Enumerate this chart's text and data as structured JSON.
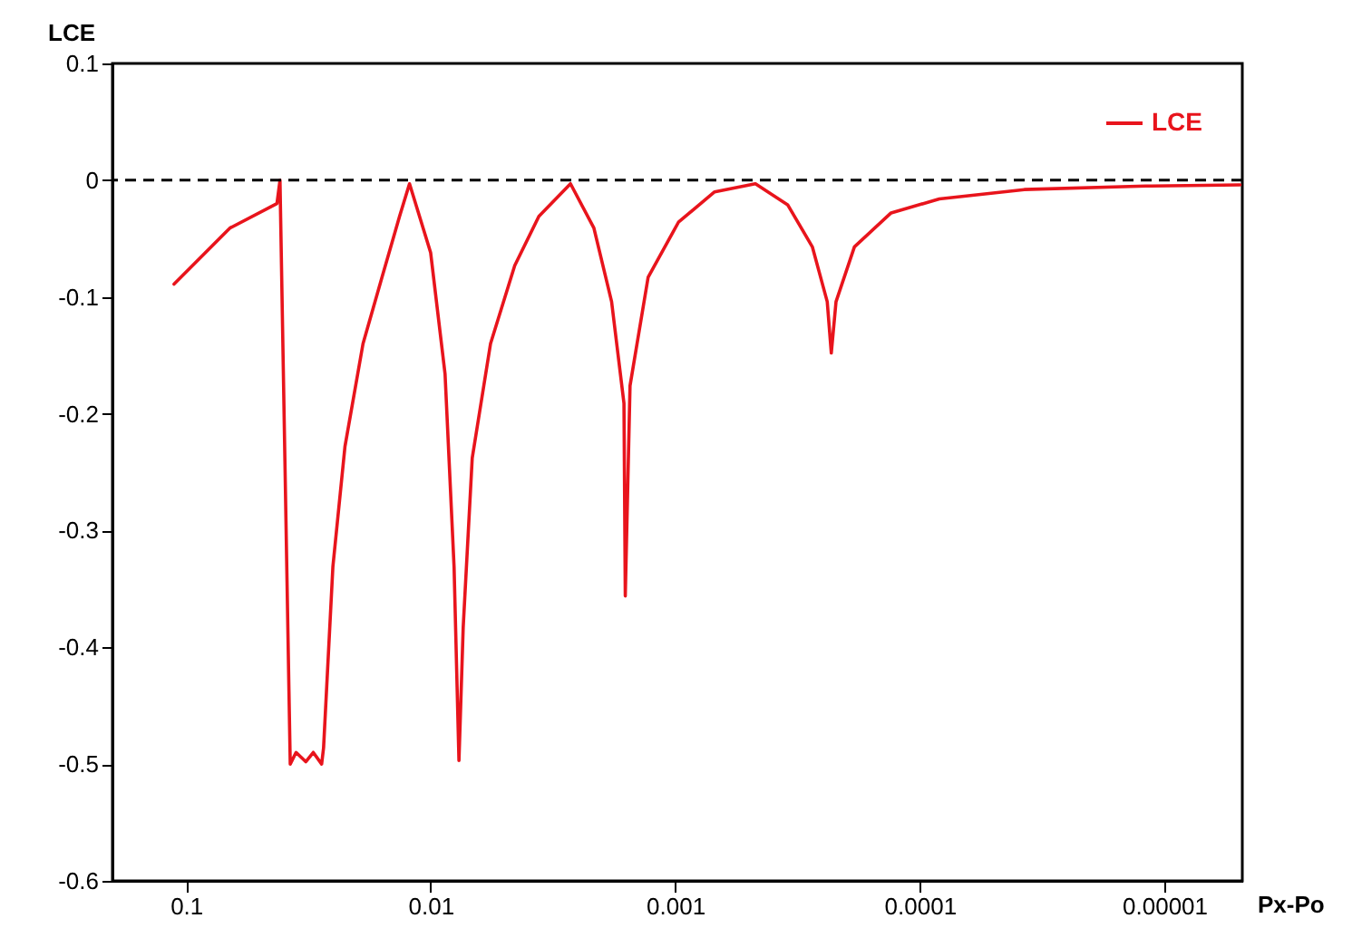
{
  "chart_data": {
    "type": "line",
    "ylabel": "LCE",
    "xlabel": "Px-Po",
    "log": "x",
    "xlim": [
      0.2,
      4.8e-06
    ],
    "xticks": [
      0.1,
      0.01,
      0.001,
      0.0001,
      {
        "value": 1e-05,
        "label": "0.00001"
      }
    ],
    "ylim": [
      -0.6,
      0.1
    ],
    "yticks": [
      -0.6,
      -0.5,
      -0.4,
      -0.3,
      -0.2,
      -0.1,
      0,
      0.1
    ],
    "grid": false,
    "legend": "top right",
    "marker": "none",
    "line_style": "solid",
    "ref_lines": [
      {
        "axis": "y",
        "value": 0,
        "color": "#000000",
        "line_style": "dashed"
      }
    ],
    "series": [
      {
        "name": "LCE",
        "color": "#e8141c",
        "x": [
          0.112,
          0.0662,
          0.0425,
          0.0413,
          0.0375,
          0.0355,
          0.0324,
          0.0302,
          0.0279,
          0.0274,
          0.0251,
          0.0224,
          0.0189,
          0.0158,
          0.0134,
          0.0122,
          0.01,
          0.00873,
          0.00802,
          0.00766,
          0.00736,
          0.00676,
          0.00569,
          0.00453,
          0.00361,
          0.00268,
          0.00215,
          0.00182,
          0.00162,
          0.0016,
          0.00153,
          0.00129,
          0.00097,
          0.00069,
          0.00047,
          0.000347,
          0.000275,
          0.000239,
          0.00023,
          0.00022,
          0.000185,
          0.000131,
          8.32e-05,
          3.74e-05,
          1.19e-05,
          4.9e-06
        ],
        "values": [
          -0.089,
          -0.041,
          -0.02,
          0,
          -0.5,
          -0.49,
          -0.498,
          -0.49,
          -0.5,
          -0.486,
          -0.331,
          -0.228,
          -0.14,
          -0.083,
          -0.031,
          -0.003,
          -0.062,
          -0.166,
          -0.331,
          -0.497,
          -0.383,
          -0.238,
          -0.14,
          -0.073,
          -0.031,
          -0.003,
          -0.041,
          -0.104,
          -0.191,
          -0.356,
          -0.176,
          -0.083,
          -0.036,
          -0.01,
          -0.003,
          -0.021,
          -0.057,
          -0.104,
          -0.148,
          -0.104,
          -0.057,
          -0.028,
          -0.016,
          -0.008,
          -0.005,
          -0.004
        ]
      }
    ]
  }
}
